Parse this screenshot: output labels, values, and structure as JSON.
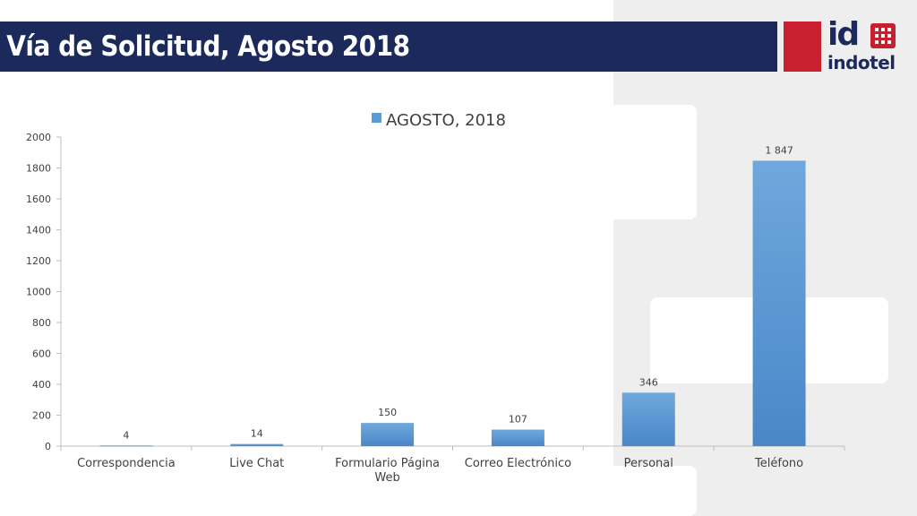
{
  "slide": {
    "title": "Vía de Solicitud, Agosto 2018"
  },
  "logo": {
    "mark": "id",
    "word": "indotel"
  },
  "colors": {
    "title_bar": "#1b2a5a",
    "brand_red": "#c8202f",
    "bar": "#5b9bd5"
  },
  "chart_data": {
    "type": "bar",
    "categories": [
      "Correspondencia",
      "Live Chat",
      "Formulario Página Web",
      "Correo Electrónico",
      "Personal",
      "Teléfono"
    ],
    "series": [
      {
        "name": "AGOSTO, 2018",
        "values": [
          4,
          14,
          150,
          107,
          346,
          1847
        ]
      }
    ],
    "data_labels": [
      "4",
      "14",
      "150",
      "107",
      "346",
      "1 847"
    ],
    "ylim": [
      0,
      2000
    ],
    "yticks": [
      0,
      200,
      400,
      600,
      800,
      1000,
      1200,
      1400,
      1600,
      1800,
      2000
    ],
    "legend": "top",
    "grid": false
  }
}
